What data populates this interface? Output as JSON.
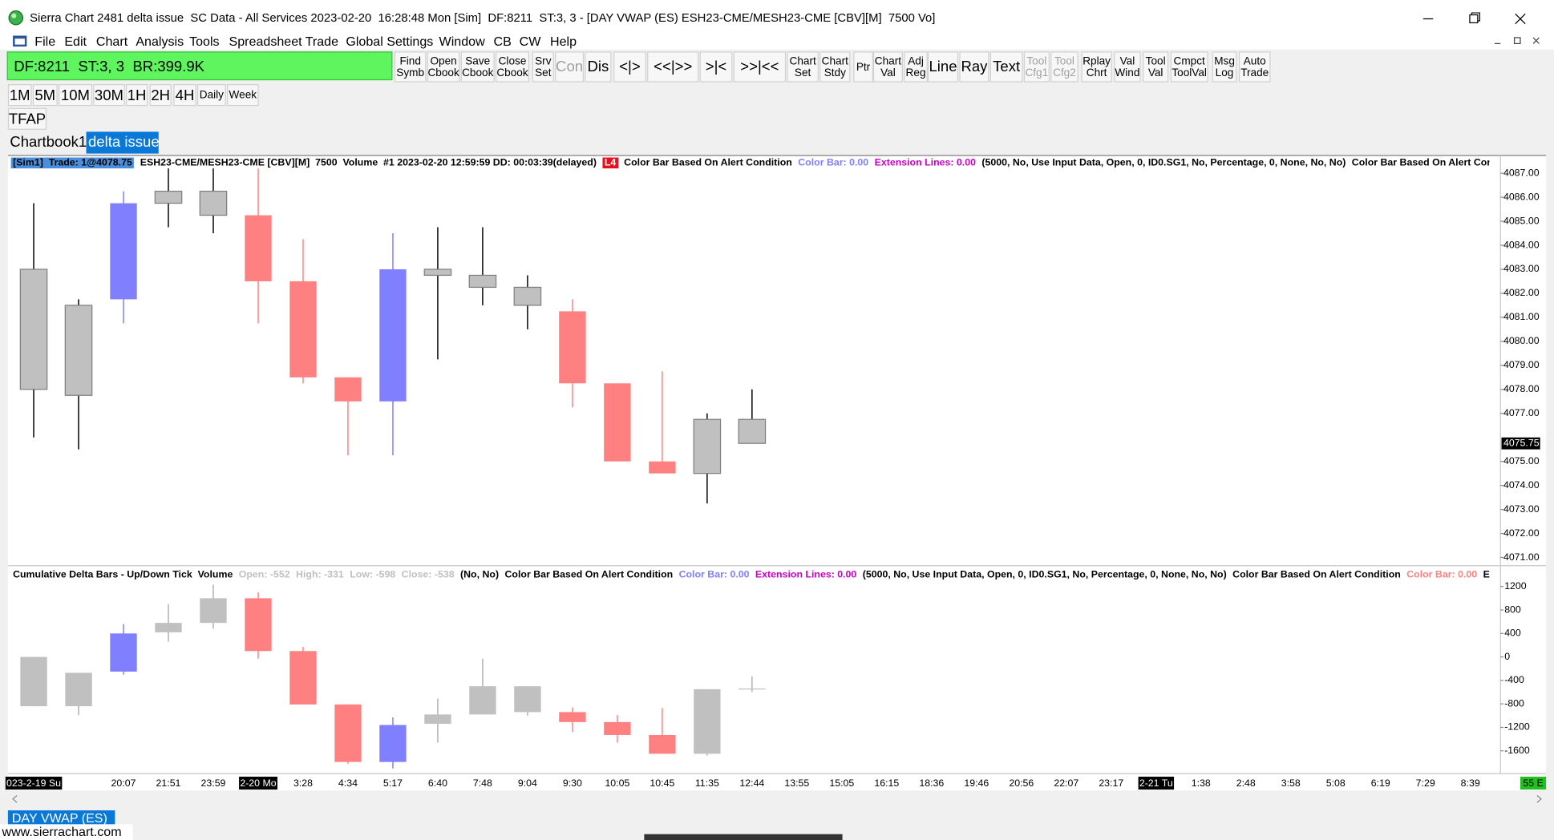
{
  "window": {
    "title": "Sierra Chart 2481 delta issue  SC Data - All Services 2023-02-20  16:28:48 Mon [Sim]  DF:8211  ST:3, 3 - [DAY VWAP (ES) ESH23-CME/MESH23-CME [CBV][M]  7500 Vo]",
    "menu": [
      "File",
      "Edit",
      "Chart",
      "Analysis",
      "Tools",
      "Spreadsheet",
      "Trade",
      "Global Settings",
      "Window",
      "CB",
      "CW",
      "Help"
    ],
    "status": "DF:8211  ST:3, 3  BR:399.9K",
    "toolbar": [
      {
        "lines": [
          "Find",
          "Symb"
        ]
      },
      {
        "lines": [
          "Open",
          "Cbook"
        ]
      },
      {
        "lines": [
          "Save",
          "Cbook"
        ]
      },
      {
        "lines": [
          "Close",
          "Cbook"
        ]
      },
      {
        "lines": [
          "Srv",
          "Set"
        ]
      },
      {
        "lines": [
          "Con"
        ],
        "enabled": false
      },
      {
        "lines": [
          "Dis"
        ]
      },
      {
        "lines": [
          "<|>"
        ]
      },
      {
        "lines": [
          "<<|>>"
        ]
      },
      {
        "lines": [
          ">|<"
        ]
      },
      {
        "lines": [
          ">>|<<"
        ]
      },
      {
        "lines": [
          "Chart",
          "Set"
        ]
      },
      {
        "lines": [
          "Chart",
          "Stdy"
        ]
      },
      {
        "lines": [
          "Ptr"
        ]
      },
      {
        "lines": [
          "Chart",
          "Val"
        ]
      },
      {
        "lines": [
          "Adj",
          "Reg"
        ]
      },
      {
        "lines": [
          "Line"
        ]
      },
      {
        "lines": [
          "Ray"
        ]
      },
      {
        "lines": [
          "Text"
        ]
      },
      {
        "lines": [
          "Tool",
          "Cfg1"
        ],
        "enabled": false
      },
      {
        "lines": [
          "Tool",
          "Cfg2"
        ],
        "enabled": false
      },
      {
        "lines": [
          "Rplay",
          "Chrt"
        ]
      },
      {
        "lines": [
          "Val",
          "Wind"
        ]
      },
      {
        "lines": [
          "Tool",
          "Val"
        ]
      },
      {
        "lines": [
          "Cmpct",
          "ToolVal"
        ]
      },
      {
        "lines": [
          "Msg",
          "Log"
        ]
      },
      {
        "lines": [
          "Auto",
          "Trade"
        ]
      }
    ],
    "timeframes": [
      "1M",
      "5M",
      "10M",
      "30M",
      "1H",
      "2H",
      "4H",
      "Daily",
      "Week"
    ],
    "tfap": "TFAP",
    "tabs": [
      "Chartbook1",
      "delta issue"
    ],
    "active_tab": 1,
    "bottom_tab": "DAY VWAP (ES)",
    "watermark": "www.sierrachart.com",
    "axis_badge": "55 E"
  },
  "chart_data": [
    {
      "type": "candlestick",
      "header": [
        {
          "text": "[Sim1]  Trade: 1@4078.75",
          "color": "#000000",
          "background": "#4a8fdc"
        },
        {
          "text": "ESH23-CME/MESH23-CME [CBV][M]  7500  Volume  #1 2023-02-20 12:59:59 DD: 00:03:39(delayed)",
          "color": "#000000"
        },
        {
          "text": "L4",
          "color": "#ffffff",
          "background": "#e8101e"
        },
        {
          "text": "Color Bar Based On Alert Condition",
          "color": "#000000"
        },
        {
          "text": "Color Bar: 0.00",
          "color": "#8080ff"
        },
        {
          "text": "Extension Lines: 0.00",
          "color": "#cc00cc"
        },
        {
          "text": "(5000, No, Use Input Data, Open, 0, ID0.SG1, No, Percentage, 0, None, No, No)",
          "color": "#000000"
        },
        {
          "text": "Color Bar Based On Alert Cond",
          "color": "#000000"
        }
      ],
      "open": [
        4083,
        4081.5,
        4081.75,
        4085.75,
        4086.25,
        4085.25,
        4082.5,
        4078.5,
        4077.5,
        4083,
        4082.75,
        4082.25,
        4081.25,
        4078.25,
        4075,
        4074.5,
        4076.75,
        null,
        null,
        null,
        null,
        null,
        null,
        null,
        null,
        null,
        null,
        null,
        null,
        null,
        null,
        null,
        null
      ],
      "high": [
        4085.75,
        4081.75,
        4086.25,
        4087.25,
        4087.25,
        4087.25,
        4084.25,
        4078.5,
        4084.5,
        4084.75,
        4084.75,
        4082.75,
        4081.75,
        4078.25,
        4078.75,
        4077,
        4078,
        null,
        null,
        null,
        null,
        null,
        null,
        null,
        null,
        null,
        null,
        null,
        null,
        null,
        null,
        null,
        null
      ],
      "low": [
        4076,
        4075.5,
        4080.75,
        4084.75,
        4084.5,
        4080.75,
        4078.25,
        4075.25,
        4075.25,
        4079.25,
        4081.5,
        4080.5,
        4077.25,
        4075,
        4074.5,
        4073.25,
        4075.75,
        null,
        null,
        null,
        null,
        null,
        null,
        null,
        null,
        null,
        null,
        null,
        null,
        null,
        null,
        null,
        null
      ],
      "close": [
        4078,
        4077.75,
        4085.75,
        4086.25,
        4085.25,
        4082.5,
        4078.5,
        4077.5,
        4083,
        4082.75,
        4082.25,
        4081.5,
        4078.25,
        4075,
        4074.5,
        4076.75,
        4075.75,
        null,
        null,
        null,
        null,
        null,
        null,
        null,
        null,
        null,
        null,
        null,
        null,
        null,
        null,
        null,
        null
      ],
      "colors": [
        "#c0c0c0",
        "#c0c0c0",
        "#8080ff",
        "#c0c0c0",
        "#c0c0c0",
        "#ff8080",
        "#ff8080",
        "#ff8080",
        "#8080ff",
        "#c0c0c0",
        "#c0c0c0",
        "#c0c0c0",
        "#ff8080",
        "#ff8080",
        "#ff8080",
        "#c0c0c0",
        "#c0c0c0",
        null,
        null,
        null,
        null,
        null,
        null,
        null,
        null,
        null,
        null,
        null,
        null,
        null,
        null,
        null,
        null
      ],
      "neutral_color": "#c0c0c0",
      "neutral_wick_color": "#000000",
      "neutral_outline": "#7f7f7f",
      "ylim": [
        4070.7,
        4087.2
      ],
      "yticks": [
        {
          "value": 4087,
          "label": "4087.00"
        },
        {
          "value": 4086,
          "label": "4086.00"
        },
        {
          "value": 4085,
          "label": "4085.00"
        },
        {
          "value": 4084,
          "label": "4084.00"
        },
        {
          "value": 4083,
          "label": "4083.00"
        },
        {
          "value": 4082,
          "label": "4082.00"
        },
        {
          "value": 4081,
          "label": "4081.00"
        },
        {
          "value": 4080,
          "label": "4080.00"
        },
        {
          "value": 4079,
          "label": "4079.00"
        },
        {
          "value": 4078,
          "label": "4078.00"
        },
        {
          "value": 4077,
          "label": "4077.00"
        },
        {
          "value": 4075,
          "label": "4075.00"
        },
        {
          "value": 4074,
          "label": "4074.00"
        },
        {
          "value": 4073,
          "label": "4073.00"
        },
        {
          "value": 4072,
          "label": "4072.00"
        },
        {
          "value": 4071,
          "label": "4071.00"
        }
      ],
      "last_price": {
        "value": 4075.75,
        "label": "4075.75"
      }
    },
    {
      "type": "candlestick",
      "header": [
        {
          "text": "Cumulative Delta Bars - Up/Down Tick  Volume",
          "color": "#000000"
        },
        {
          "text": "Open: -552",
          "color": "#c0c0c0"
        },
        {
          "text": "High: -331",
          "color": "#c0c0c0"
        },
        {
          "text": "Low: -598",
          "color": "#c0c0c0"
        },
        {
          "text": "Close: -538",
          "color": "#c0c0c0"
        },
        {
          "text": "(No, No)",
          "color": "#000000"
        },
        {
          "text": "Color Bar Based On Alert Condition",
          "color": "#000000"
        },
        {
          "text": "Color Bar: 0.00",
          "color": "#8080ff"
        },
        {
          "text": "Extension Lines: 0.00",
          "color": "#cc00cc"
        },
        {
          "text": "(5000, No, Use Input Data, Open, 0, ID0.SG1, No, Percentage, 0, None, No, No)",
          "color": "#000000"
        },
        {
          "text": "Color Bar Based On Alert Condition",
          "color": "#000000"
        },
        {
          "text": "Color Bar: 0.00",
          "color": "#ff8080"
        },
        {
          "text": "E",
          "color": "#000000"
        }
      ],
      "categories": [
        "023-2-19 Su",
        null,
        "20:07",
        "21:51",
        "23:59",
        "2-20 Mo",
        "3:28",
        "4:34",
        "5:17",
        "6:40",
        "7:48",
        "9:04",
        "9:30",
        "10:05",
        "10:45",
        "11:35",
        "12:44",
        "13:55",
        "15:05",
        "16:15",
        "18:36",
        "19:46",
        "20:56",
        "22:07",
        "23:17",
        "2-21 Tu",
        "1:38",
        "2:48",
        "3:58",
        "5:08",
        "6:19",
        "7:29",
        "8:39"
      ],
      "highlighted": [
        0,
        5,
        25
      ],
      "open": [
        0,
        -270,
        -250,
        420,
        580,
        1000,
        100,
        -810,
        -1790,
        -1140,
        -980,
        -500,
        -940,
        -1110,
        -1330,
        -1650,
        -552,
        null,
        null,
        null,
        null,
        null,
        null,
        null,
        null,
        null,
        null,
        null,
        null,
        null,
        null,
        null,
        null
      ],
      "high": [
        0,
        -270,
        560,
        900,
        1230,
        1100,
        170,
        -810,
        -1030,
        -710,
        -30,
        -500,
        -860,
        -990,
        -870,
        -550,
        -331,
        null,
        null,
        null,
        null,
        null,
        null,
        null,
        null,
        null,
        null,
        null,
        null,
        null,
        null,
        null,
        null
      ],
      "low": [
        -840,
        -990,
        -300,
        260,
        480,
        -30,
        -810,
        -1820,
        -1900,
        -1460,
        -980,
        -1000,
        -1280,
        -1460,
        -1650,
        -1680,
        -598,
        null,
        null,
        null,
        null,
        null,
        null,
        null,
        null,
        null,
        null,
        null,
        null,
        null,
        null,
        null,
        null
      ],
      "close": [
        -840,
        -840,
        400,
        580,
        1000,
        100,
        -810,
        -1790,
        -1160,
        -980,
        -500,
        -940,
        -1110,
        -1330,
        -1650,
        -550,
        -538,
        null,
        null,
        null,
        null,
        null,
        null,
        null,
        null,
        null,
        null,
        null,
        null,
        null,
        null,
        null,
        null
      ],
      "colors": [
        "#c0c0c0",
        "#c0c0c0",
        "#8080ff",
        "#c0c0c0",
        "#c0c0c0",
        "#ff8080",
        "#ff8080",
        "#ff8080",
        "#8080ff",
        "#c0c0c0",
        "#c0c0c0",
        "#c0c0c0",
        "#ff8080",
        "#ff8080",
        "#ff8080",
        "#c0c0c0",
        "#c0c0c0",
        null,
        null,
        null,
        null,
        null,
        null,
        null,
        null,
        null,
        null,
        null,
        null,
        null,
        null,
        null,
        null
      ],
      "neutral_color": "#c0c0c0",
      "neutral_wick_color": "#b0b0b0",
      "ylim": [
        -1990,
        1285
      ],
      "yticks": [
        1200,
        800,
        400,
        0,
        -400,
        -800,
        -1200,
        -1600
      ]
    }
  ]
}
